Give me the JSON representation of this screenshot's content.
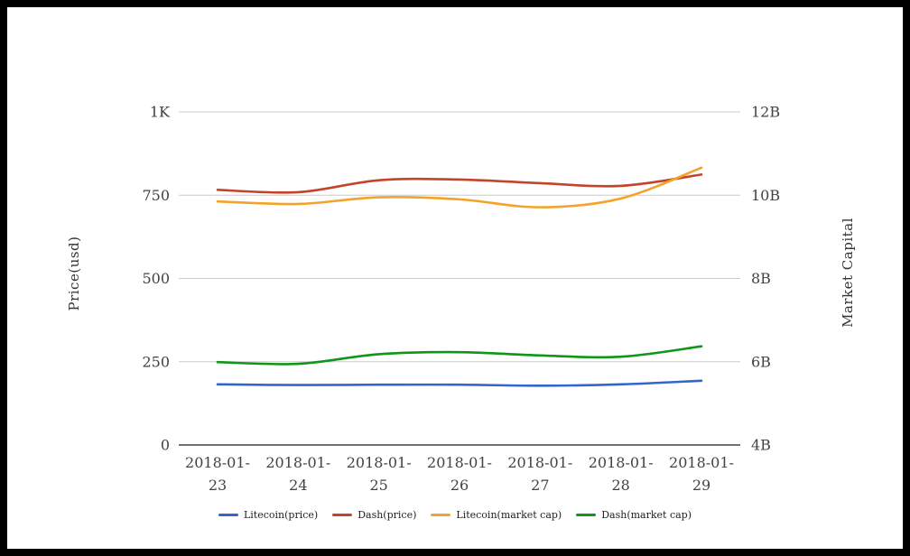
{
  "chart_data": {
    "type": "line",
    "smooth": true,
    "grid": true,
    "legend_position": "bottom",
    "x": [
      "2018-01-23",
      "2018-01-24",
      "2018-01-25",
      "2018-01-26",
      "2018-01-27",
      "2018-01-28",
      "2018-01-29"
    ],
    "series": [
      {
        "name": "Litecoin(price)",
        "axis": "left",
        "color": "#3366cc",
        "values": [
          182,
          180,
          181,
          181,
          178,
          182,
          193
        ]
      },
      {
        "name": "Dash(price)",
        "axis": "left",
        "color": "#c5432b",
        "values": [
          766,
          759,
          795,
          797,
          786,
          778,
          812
        ]
      },
      {
        "name": "Litecoin(market cap)",
        "axis": "right",
        "unit": "B",
        "color": "#f4a32a",
        "values": [
          9.85,
          9.79,
          9.95,
          9.9,
          9.71,
          9.92,
          10.66
        ]
      },
      {
        "name": "Dash(market cap)",
        "axis": "right",
        "unit": "B",
        "color": "#109618",
        "values": [
          5.99,
          5.95,
          6.18,
          6.23,
          6.15,
          6.12,
          6.37
        ]
      }
    ]
  },
  "axes": {
    "left": {
      "title": "Price(usd)",
      "range": [
        0,
        1000
      ],
      "ticks": [
        {
          "label": "0",
          "value": 0
        },
        {
          "label": "250",
          "value": 250
        },
        {
          "label": "500",
          "value": 500
        },
        {
          "label": "750",
          "value": 750
        },
        {
          "label": "1K",
          "value": 1000
        }
      ]
    },
    "right": {
      "title": "Market Capital",
      "range": [
        4,
        12
      ],
      "unit": "billions",
      "ticks": [
        {
          "label": "4B",
          "value": 4
        },
        {
          "label": "6B",
          "value": 6
        },
        {
          "label": "8B",
          "value": 8
        },
        {
          "label": "10B",
          "value": 10
        },
        {
          "label": "12B",
          "value": 12
        }
      ]
    }
  },
  "colors": {
    "gridline": "#cccccc",
    "axis_line": "#424242",
    "tick_text": "#424242"
  }
}
